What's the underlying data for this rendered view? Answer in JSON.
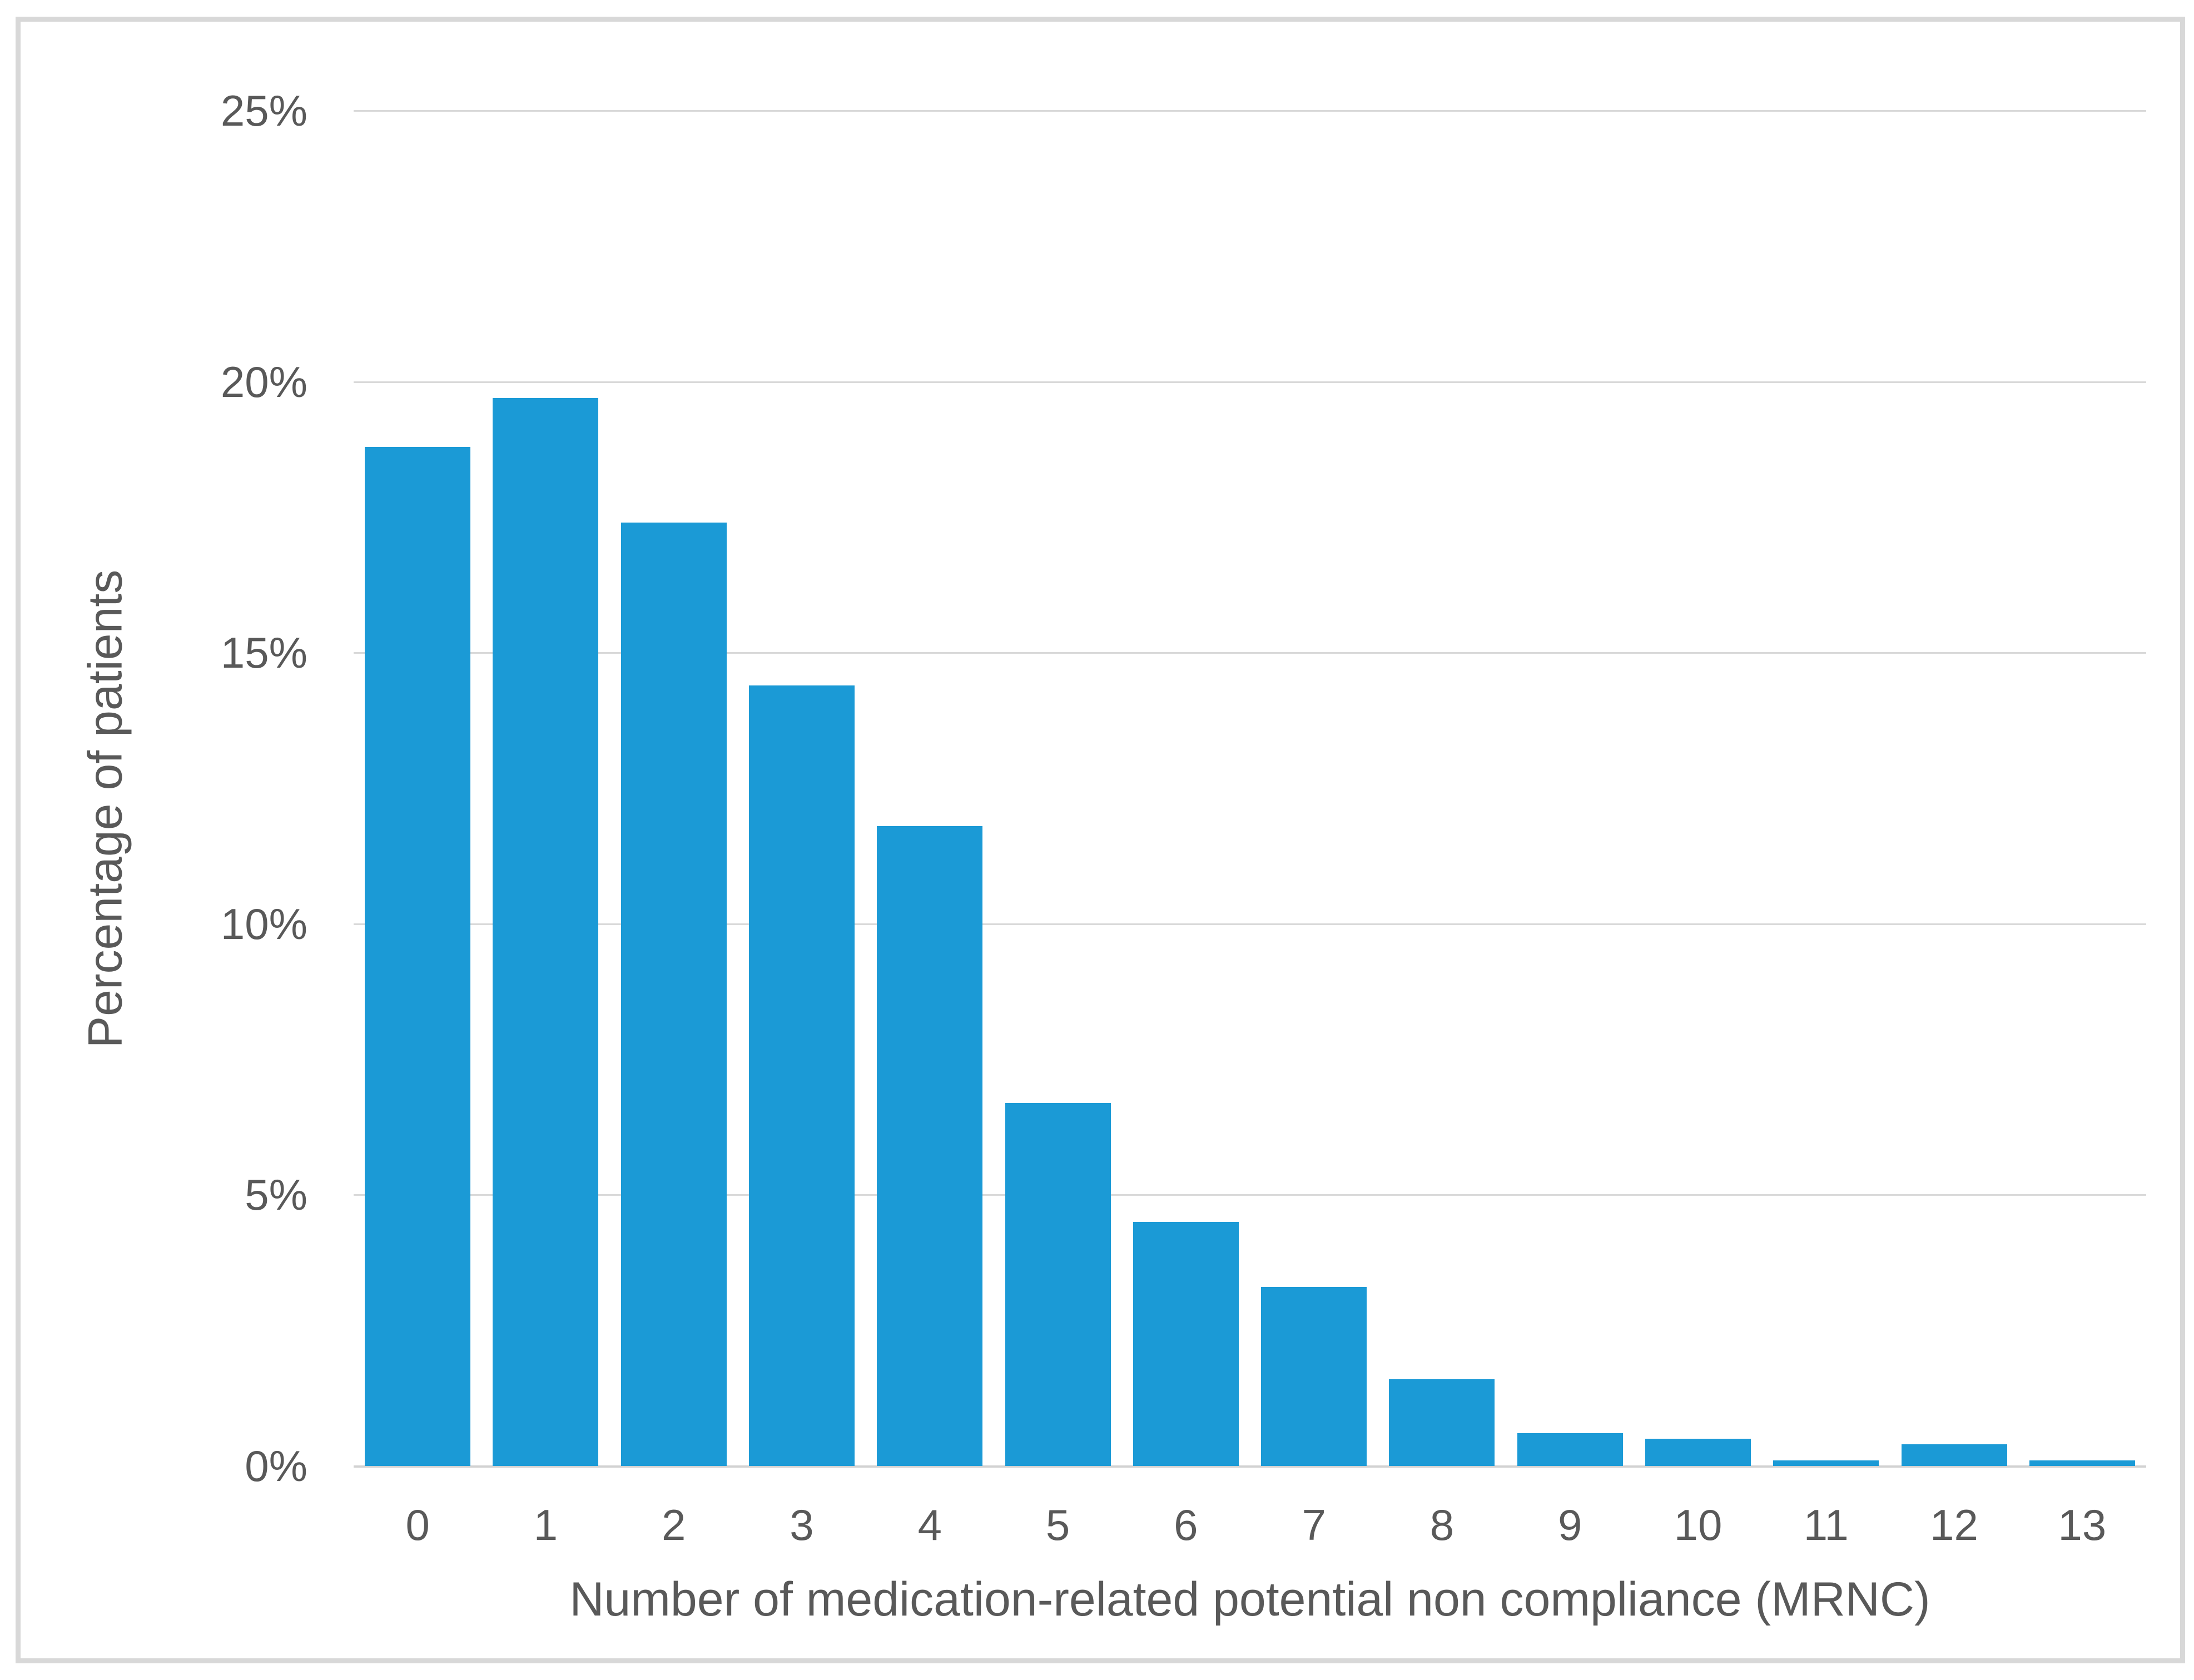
{
  "chart_data": {
    "type": "bar",
    "title": "",
    "categories": [
      "0",
      "1",
      "2",
      "3",
      "4",
      "5",
      "6",
      "7",
      "8",
      "9",
      "10",
      "11",
      "12",
      "13"
    ],
    "values": [
      18.8,
      19.7,
      17.4,
      14.4,
      11.8,
      6.7,
      4.5,
      3.3,
      1.6,
      0.6,
      0.5,
      0.1,
      0.4,
      0.1
    ],
    "value_unit": "%",
    "xlabel": "Number of medication-related potential non compliance (MRNC)",
    "ylabel": "Percentage of patients",
    "ylim": [
      0,
      25
    ],
    "yticks": [
      {
        "value": 25,
        "label": "25%"
      },
      {
        "value": 20,
        "label": "20%"
      },
      {
        "value": 15,
        "label": "15%"
      },
      {
        "value": 10,
        "label": "10%"
      },
      {
        "value": 5,
        "label": "5%"
      },
      {
        "value": 0,
        "label": "0%"
      }
    ],
    "grid": true,
    "legend": false,
    "series_name": "Percentage of patients"
  },
  "colors": {
    "bar": "#1b9ad6",
    "gridline": "#d9d9d9",
    "axis_line": "#d2d2d2",
    "text": "#595959",
    "frame_border": "#d8d8d8",
    "background": "#ffffff"
  }
}
